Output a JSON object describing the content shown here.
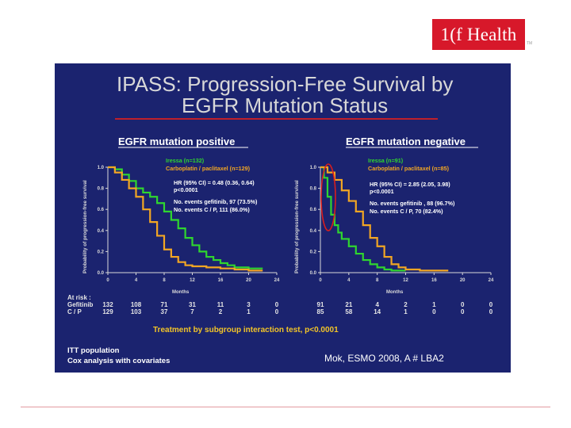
{
  "logo": {
    "text": "1(f Health",
    "tm": "TM"
  },
  "colors": {
    "slide_bg": "#1b236f",
    "iressa": "#2fd62f",
    "cp": "#f2a623",
    "title_rule": "#c0202a",
    "highlight_oval": "#d81e1e",
    "logo_bg": "#d7182a"
  },
  "slide": {
    "title_line1": "IPASS: Progression-Free Survival by",
    "title_line2": "EGFR Mutation Status",
    "treatment_note": "Treatment by subgroup interaction test, p<0.0001",
    "footer_line1": "ITT population",
    "footer_line2": "Cox analysis with covariates",
    "citation": "Mok, ESMO 2008, A # LBA2"
  },
  "chart_data": [
    {
      "type": "line",
      "title": "EGFR mutation positive",
      "xlabel": "Months",
      "ylabel": "Probability of progression-free survival",
      "xlim": [
        0,
        24
      ],
      "ylim": [
        0,
        1.0
      ],
      "x_ticks": [
        "0",
        "4",
        "8",
        "12",
        "16",
        "20",
        "24"
      ],
      "y_ticks": [
        "0.0",
        "0.2",
        "0.4",
        "0.6",
        "0.8",
        "1.0"
      ],
      "legend_position": "top-right",
      "annotations": [
        "HR (95% CI) = 0.48 (0.36, 0.64)",
        "p<0.0001",
        "No. events gefitinib, 97 (73.5%)",
        "No. events C / P, 111 (86.0%)"
      ],
      "series": [
        {
          "name": "Iressa (n=132)",
          "color": "#2fd62f",
          "x": [
            0,
            1,
            2,
            3,
            4,
            5,
            6,
            7,
            8,
            9,
            10,
            11,
            12,
            13,
            14,
            15,
            16,
            17,
            18,
            20,
            22
          ],
          "y": [
            1.0,
            0.98,
            0.93,
            0.87,
            0.8,
            0.76,
            0.72,
            0.66,
            0.58,
            0.5,
            0.42,
            0.33,
            0.26,
            0.2,
            0.15,
            0.12,
            0.09,
            0.07,
            0.05,
            0.04,
            0.04
          ]
        },
        {
          "name": "Carboplatin / paclitaxel (n=129)",
          "color": "#f2a623",
          "x": [
            0,
            1,
            2,
            3,
            4,
            5,
            6,
            7,
            8,
            9,
            10,
            11,
            12,
            14,
            16,
            18,
            20,
            22
          ],
          "y": [
            1.0,
            0.95,
            0.88,
            0.8,
            0.72,
            0.6,
            0.48,
            0.35,
            0.22,
            0.15,
            0.1,
            0.07,
            0.06,
            0.05,
            0.04,
            0.03,
            0.02,
            0.02
          ]
        }
      ],
      "at_risk": {
        "label": "At risk :",
        "rows": [
          {
            "name": "Gefitinib",
            "values": [
              "132",
              "108",
              "71",
              "31",
              "11",
              "3",
              "0"
            ]
          },
          {
            "name": "C / P",
            "values": [
              "129",
              "103",
              "37",
              "7",
              "2",
              "1",
              "0"
            ]
          }
        ]
      }
    },
    {
      "type": "line",
      "title": "EGFR mutation negative",
      "xlabel": "Months",
      "ylabel": "Probability of progression-free survival",
      "xlim": [
        0,
        24
      ],
      "ylim": [
        0,
        1.0
      ],
      "x_ticks": [
        "0",
        "4",
        "8",
        "12",
        "16",
        "20",
        "24"
      ],
      "y_ticks": [
        "0.0",
        "0.2",
        "0.4",
        "0.6",
        "0.8",
        "1.0"
      ],
      "legend_position": "top-right",
      "annotations": [
        "HR (95% CI) = 2.85 (2.05, 3.98)",
        "p<0.0001",
        "No. events gefitinib , 88 (96.7%)",
        "No. events C / P, 70 (82.4%)"
      ],
      "series": [
        {
          "name": "Iressa (n=91)",
          "color": "#2fd62f",
          "x": [
            0,
            0.5,
            1,
            1.5,
            2,
            2.5,
            3,
            4,
            5,
            6,
            7,
            8,
            9,
            10,
            11,
            12
          ],
          "y": [
            1.0,
            0.9,
            0.72,
            0.55,
            0.45,
            0.38,
            0.32,
            0.25,
            0.18,
            0.12,
            0.08,
            0.05,
            0.03,
            0.02,
            0.02,
            0.02
          ]
        },
        {
          "name": "Carboplatin / paclitaxel (n=85)",
          "color": "#f2a623",
          "x": [
            0,
            1,
            2,
            3,
            4,
            5,
            6,
            7,
            8,
            9,
            10,
            11,
            12,
            14,
            16,
            18
          ],
          "y": [
            1.0,
            0.95,
            0.88,
            0.78,
            0.68,
            0.58,
            0.45,
            0.33,
            0.25,
            0.15,
            0.08,
            0.05,
            0.03,
            0.02,
            0.02,
            0.02
          ]
        }
      ],
      "at_risk": {
        "label": "",
        "rows": [
          {
            "name": "",
            "values": [
              "91",
              "21",
              "4",
              "2",
              "1",
              "0",
              "0"
            ]
          },
          {
            "name": "",
            "values": [
              "85",
              "58",
              "14",
              "1",
              "0",
              "0",
              "0"
            ]
          }
        ]
      }
    }
  ]
}
